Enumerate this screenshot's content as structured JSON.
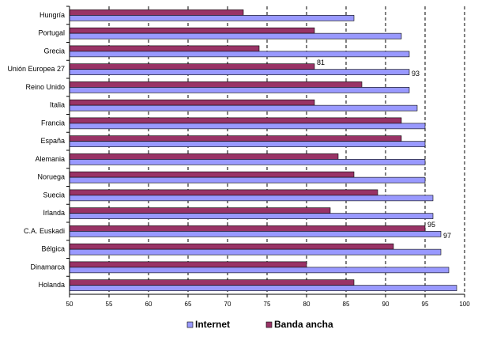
{
  "chart_data": {
    "type": "hbar",
    "categories": [
      "Hungría",
      "Portugal",
      "Grecia",
      "Unión Europea 27",
      "Reino Unido",
      "Italia",
      "Francia",
      "España",
      "Alemania",
      "Noruega",
      "Suecia",
      "Irlanda",
      "C.A. Euskadi",
      "Bélgica",
      "Dinamarca",
      "Holanda"
    ],
    "series": [
      {
        "name": "Internet",
        "color": "#9999ff",
        "values": [
          86,
          92,
          93,
          93,
          93,
          94,
          95,
          95,
          95,
          95,
          96,
          96,
          97,
          97,
          98,
          99
        ],
        "value_labels": [
          null,
          null,
          null,
          93,
          null,
          null,
          null,
          null,
          null,
          null,
          null,
          null,
          97,
          null,
          null,
          null
        ]
      },
      {
        "name": "Banda ancha",
        "color": "#993366",
        "values": [
          72,
          81,
          74,
          81,
          87,
          81,
          92,
          92,
          84,
          86,
          89,
          83,
          95,
          91,
          80,
          86
        ],
        "value_labels": [
          null,
          null,
          null,
          81,
          null,
          null,
          null,
          null,
          null,
          null,
          null,
          null,
          95,
          null,
          null,
          null
        ]
      }
    ],
    "xlim": [
      50,
      100
    ],
    "xticks": [
      50,
      55,
      60,
      65,
      70,
      75,
      80,
      85,
      90,
      95,
      100
    ],
    "grid": true,
    "legend": "bottom"
  }
}
